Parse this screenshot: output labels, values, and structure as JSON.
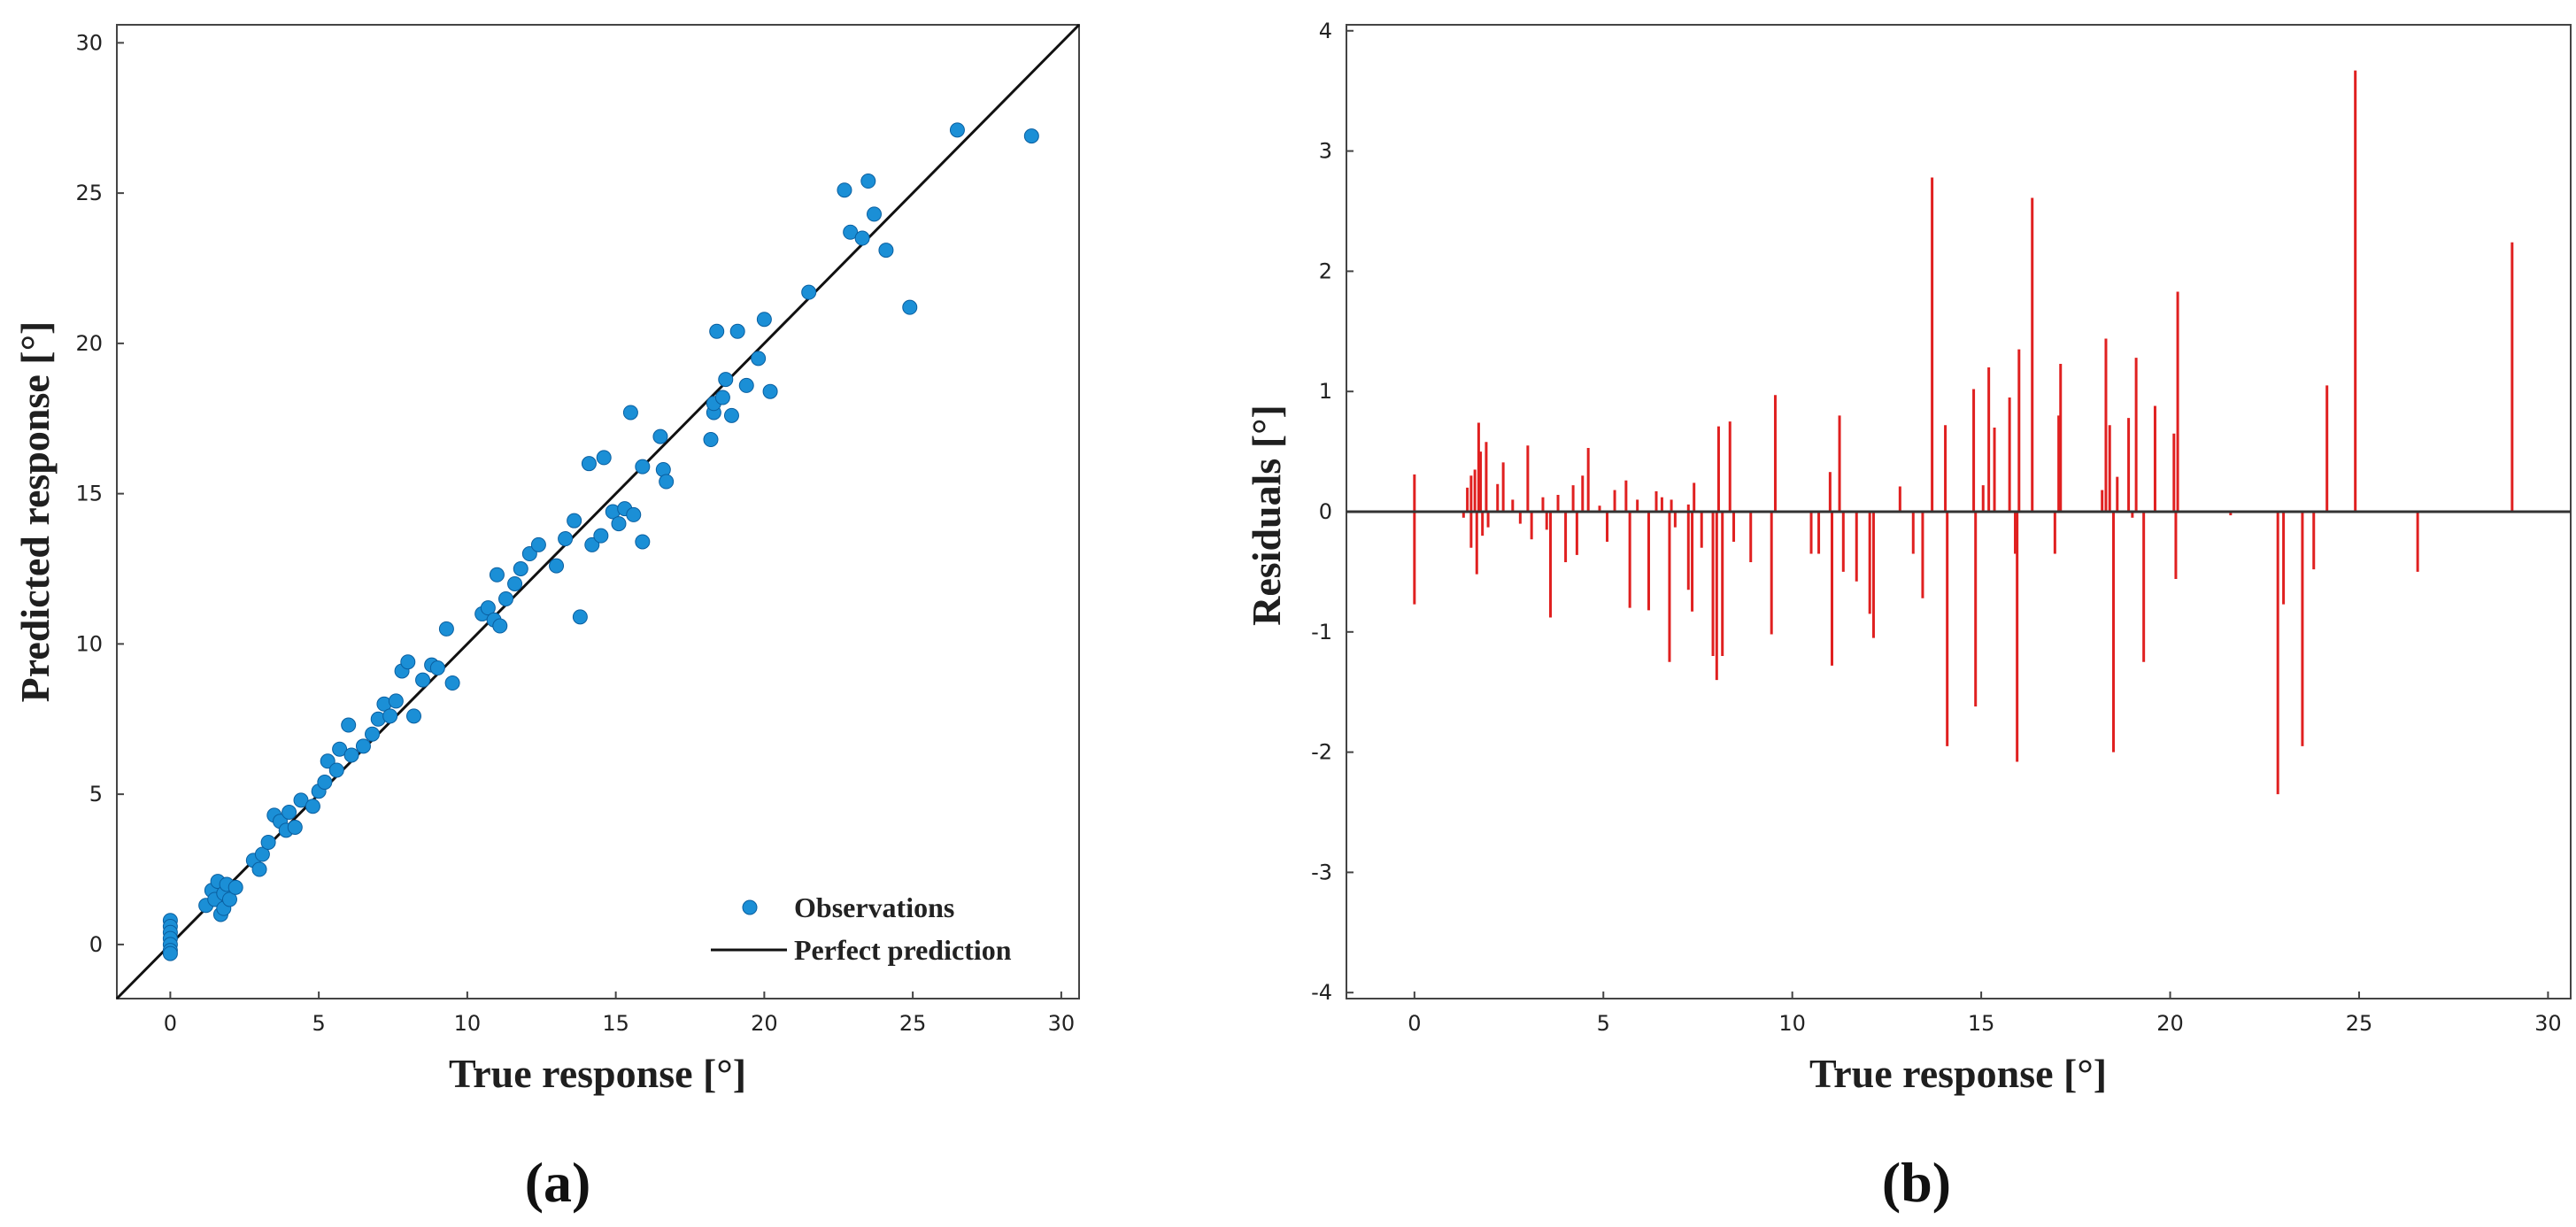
{
  "chart_data": [
    {
      "type": "scatter",
      "panel_label": "(a)",
      "xlabel": "True response [°]",
      "ylabel": "Predicted response [°]",
      "xlim": [
        -1.8,
        30.6
      ],
      "ylim": [
        -1.8,
        30.6
      ],
      "xticks": [
        0,
        5,
        10,
        15,
        20,
        25,
        30
      ],
      "yticks": [
        0,
        5,
        10,
        15,
        20,
        25,
        30
      ],
      "colors": {
        "points": "#1b8fd6",
        "line": "#111111"
      },
      "legend": {
        "position": "bottom-right",
        "entries": [
          "Observations",
          "Perfect prediction"
        ]
      },
      "reference_line": {
        "name": "Perfect prediction",
        "x": [
          -1.8,
          30.6
        ],
        "y": [
          -1.8,
          30.6
        ]
      },
      "series": [
        {
          "name": "Observations",
          "points": [
            [
              0,
              0.8
            ],
            [
              0,
              0.6
            ],
            [
              0,
              0.4
            ],
            [
              0,
              0.2
            ],
            [
              0,
              0.0
            ],
            [
              0,
              -0.2
            ],
            [
              0,
              -0.3
            ],
            [
              1.2,
              1.3
            ],
            [
              1.4,
              1.8
            ],
            [
              1.5,
              1.5
            ],
            [
              1.6,
              2.1
            ],
            [
              1.7,
              1.0
            ],
            [
              1.8,
              1.7
            ],
            [
              1.8,
              1.2
            ],
            [
              1.9,
              2.0
            ],
            [
              2.0,
              1.5
            ],
            [
              2.2,
              1.9
            ],
            [
              2.8,
              2.8
            ],
            [
              3.0,
              2.5
            ],
            [
              3.1,
              3.0
            ],
            [
              3.3,
              3.4
            ],
            [
              3.5,
              4.3
            ],
            [
              3.7,
              4.1
            ],
            [
              3.9,
              3.8
            ],
            [
              4.0,
              4.4
            ],
            [
              4.2,
              3.9
            ],
            [
              4.4,
              4.8
            ],
            [
              4.8,
              4.6
            ],
            [
              5.0,
              5.1
            ],
            [
              5.2,
              5.4
            ],
            [
              5.3,
              6.1
            ],
            [
              5.6,
              5.8
            ],
            [
              5.7,
              6.5
            ],
            [
              6.0,
              7.3
            ],
            [
              6.1,
              6.3
            ],
            [
              6.5,
              6.6
            ],
            [
              6.8,
              7.0
            ],
            [
              7.0,
              7.5
            ],
            [
              7.2,
              8.0
            ],
            [
              7.4,
              7.6
            ],
            [
              7.6,
              8.1
            ],
            [
              7.8,
              9.1
            ],
            [
              8.0,
              9.4
            ],
            [
              8.2,
              7.6
            ],
            [
              8.5,
              8.8
            ],
            [
              8.8,
              9.3
            ],
            [
              9.0,
              9.2
            ],
            [
              9.3,
              10.5
            ],
            [
              9.5,
              8.7
            ],
            [
              10.5,
              11.0
            ],
            [
              10.7,
              11.2
            ],
            [
              10.9,
              10.8
            ],
            [
              11.0,
              12.3
            ],
            [
              11.1,
              10.6
            ],
            [
              11.3,
              11.5
            ],
            [
              11.6,
              12.0
            ],
            [
              11.8,
              12.5
            ],
            [
              12.1,
              13.0
            ],
            [
              12.4,
              13.3
            ],
            [
              13.0,
              12.6
            ],
            [
              13.3,
              13.5
            ],
            [
              13.6,
              14.1
            ],
            [
              13.8,
              10.9
            ],
            [
              14.1,
              16.0
            ],
            [
              14.2,
              13.3
            ],
            [
              14.5,
              13.6
            ],
            [
              14.6,
              16.2
            ],
            [
              14.9,
              14.4
            ],
            [
              15.1,
              14.0
            ],
            [
              15.3,
              14.5
            ],
            [
              15.5,
              17.7
            ],
            [
              15.6,
              14.3
            ],
            [
              15.9,
              13.4
            ],
            [
              15.9,
              15.9
            ],
            [
              16.5,
              16.9
            ],
            [
              16.6,
              15.8
            ],
            [
              16.7,
              15.4
            ],
            [
              18.2,
              16.8
            ],
            [
              18.3,
              17.7
            ],
            [
              18.3,
              18.0
            ],
            [
              18.4,
              20.4
            ],
            [
              18.6,
              18.2
            ],
            [
              18.7,
              18.8
            ],
            [
              18.9,
              17.6
            ],
            [
              19.1,
              20.4
            ],
            [
              19.4,
              18.6
            ],
            [
              19.8,
              19.5
            ],
            [
              20.0,
              20.8
            ],
            [
              20.2,
              18.4
            ],
            [
              21.5,
              21.7
            ],
            [
              22.7,
              25.1
            ],
            [
              22.9,
              23.7
            ],
            [
              23.3,
              23.5
            ],
            [
              23.5,
              25.4
            ],
            [
              23.7,
              24.3
            ],
            [
              24.1,
              23.1
            ],
            [
              24.9,
              21.2
            ],
            [
              26.5,
              27.1
            ],
            [
              29.0,
              26.9
            ]
          ]
        }
      ]
    },
    {
      "type": "stem",
      "panel_label": "(b)",
      "xlabel": "True response [°]",
      "ylabel": "Residuals [°]",
      "xlim": [
        -1.8,
        30.6
      ],
      "ylim": [
        -4.05,
        4.05
      ],
      "xticks": [
        0,
        5,
        10,
        15,
        20,
        25,
        30
      ],
      "yticks": [
        -4,
        -3,
        -2,
        -1,
        0,
        1,
        2,
        3,
        4
      ],
      "colors": {
        "stems": "#e02020",
        "baseline": "#333333"
      },
      "residuals": [
        [
          0.0,
          0.31
        ],
        [
          0.0,
          -0.77
        ],
        [
          1.3,
          -0.05
        ],
        [
          1.4,
          0.2
        ],
        [
          1.5,
          0.3
        ],
        [
          1.5,
          -0.3
        ],
        [
          1.6,
          0.35
        ],
        [
          1.65,
          -0.52
        ],
        [
          1.7,
          0.74
        ],
        [
          1.75,
          0.5
        ],
        [
          1.8,
          -0.2
        ],
        [
          1.9,
          0.58
        ],
        [
          1.95,
          -0.13
        ],
        [
          2.2,
          0.23
        ],
        [
          2.35,
          0.41
        ],
        [
          2.6,
          0.1
        ],
        [
          2.8,
          -0.1
        ],
        [
          3.0,
          0.55
        ],
        [
          3.1,
          -0.23
        ],
        [
          3.4,
          0.12
        ],
        [
          3.5,
          -0.15
        ],
        [
          3.6,
          -0.88
        ],
        [
          3.8,
          0.14
        ],
        [
          4.0,
          -0.42
        ],
        [
          4.2,
          0.22
        ],
        [
          4.3,
          -0.36
        ],
        [
          4.45,
          0.3
        ],
        [
          4.6,
          0.53
        ],
        [
          4.9,
          0.05
        ],
        [
          5.1,
          -0.25
        ],
        [
          5.3,
          0.18
        ],
        [
          5.6,
          0.26
        ],
        [
          5.7,
          -0.8
        ],
        [
          5.9,
          0.1
        ],
        [
          6.2,
          -0.82
        ],
        [
          6.4,
          0.17
        ],
        [
          6.55,
          0.12
        ],
        [
          6.75,
          -1.25
        ],
        [
          6.8,
          0.1
        ],
        [
          6.9,
          -0.13
        ],
        [
          7.25,
          0.06
        ],
        [
          7.4,
          0.24
        ],
        [
          7.25,
          -0.65
        ],
        [
          7.35,
          -0.83
        ],
        [
          7.6,
          -0.3
        ],
        [
          7.9,
          -1.2
        ],
        [
          8.0,
          -1.4
        ],
        [
          8.05,
          0.71
        ],
        [
          8.15,
          -1.2
        ],
        [
          8.35,
          0.75
        ],
        [
          8.45,
          -0.25
        ],
        [
          8.9,
          -0.42
        ],
        [
          9.45,
          -1.02
        ],
        [
          9.55,
          0.97
        ],
        [
          10.5,
          -0.35
        ],
        [
          10.7,
          -0.35
        ],
        [
          11.0,
          0.33
        ],
        [
          11.05,
          -1.28
        ],
        [
          11.25,
          0.8
        ],
        [
          11.35,
          -0.5
        ],
        [
          11.7,
          -0.58
        ],
        [
          12.05,
          -0.85
        ],
        [
          12.15,
          -1.05
        ],
        [
          12.85,
          0.21
        ],
        [
          13.2,
          -0.35
        ],
        [
          13.45,
          -0.72
        ],
        [
          13.7,
          2.78
        ],
        [
          14.05,
          0.72
        ],
        [
          14.1,
          -1.95
        ],
        [
          14.8,
          1.02
        ],
        [
          14.85,
          -1.62
        ],
        [
          15.05,
          0.22
        ],
        [
          15.2,
          1.2
        ],
        [
          15.35,
          0.7
        ],
        [
          15.75,
          0.95
        ],
        [
          15.9,
          -0.35
        ],
        [
          16.0,
          1.35
        ],
        [
          15.95,
          -2.08
        ],
        [
          16.35,
          2.61
        ],
        [
          16.95,
          -0.35
        ],
        [
          17.05,
          0.8
        ],
        [
          17.1,
          1.23
        ],
        [
          18.2,
          0.18
        ],
        [
          18.3,
          1.44
        ],
        [
          18.4,
          0.72
        ],
        [
          18.5,
          -2.0
        ],
        [
          18.6,
          0.29
        ],
        [
          18.9,
          0.78
        ],
        [
          19.0,
          -0.05
        ],
        [
          19.1,
          1.28
        ],
        [
          19.3,
          -1.25
        ],
        [
          19.6,
          0.88
        ],
        [
          20.1,
          0.65
        ],
        [
          20.15,
          -0.56
        ],
        [
          20.2,
          1.83
        ],
        [
          21.6,
          -0.03
        ],
        [
          22.85,
          -2.35
        ],
        [
          23.0,
          -0.77
        ],
        [
          23.5,
          -1.95
        ],
        [
          23.8,
          -0.48
        ],
        [
          24.15,
          1.05
        ],
        [
          24.9,
          3.67
        ],
        [
          26.55,
          -0.5
        ],
        [
          29.05,
          2.24
        ]
      ]
    }
  ]
}
